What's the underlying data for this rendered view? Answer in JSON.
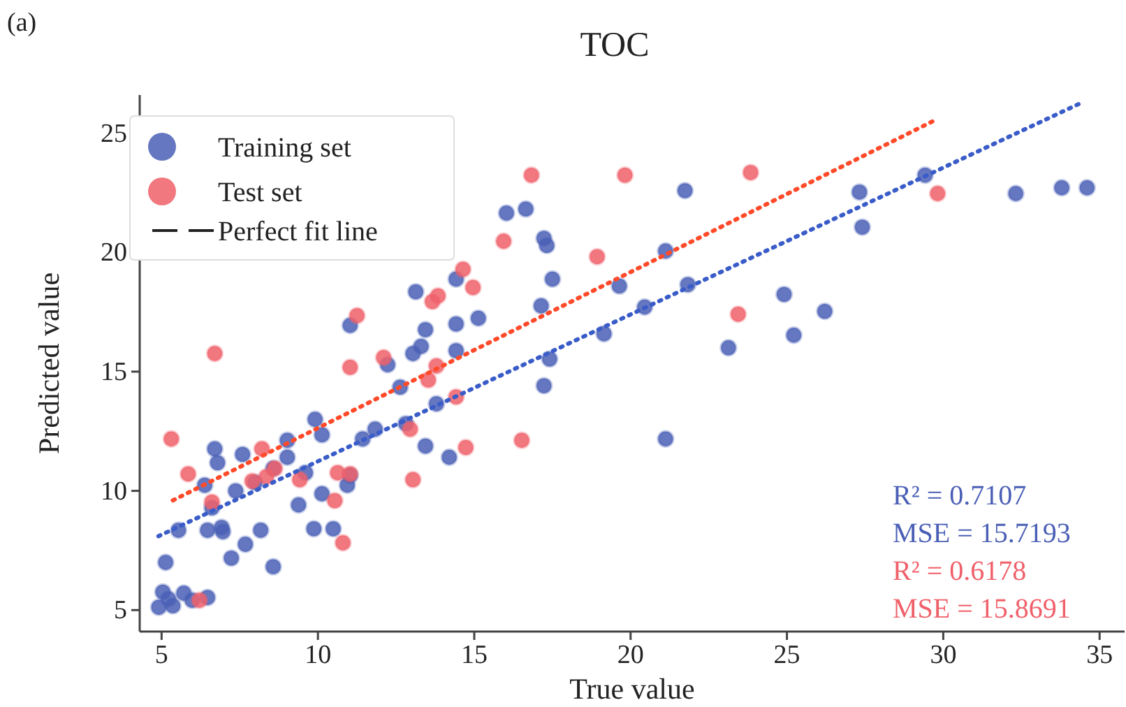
{
  "chart_data": {
    "type": "scatter",
    "title": "TOC",
    "xlabel": "True value",
    "ylabel": "Predicted value",
    "xlim": [
      4.3,
      35.8
    ],
    "ylim": [
      4.1,
      26.6
    ],
    "xticks": [
      5,
      10,
      15,
      20,
      25,
      30,
      35
    ],
    "yticks": [
      5,
      10,
      15,
      20,
      25
    ],
    "grid": false,
    "legend": "top left",
    "annotations": [
      "(a)",
      "Perfect fit line",
      "R² = 0.7107",
      "MSE = 15.7193",
      "R² = 0.6178",
      "MSE = 15.8691"
    ],
    "series": [
      {
        "name": "Training set",
        "marker": "circle",
        "color": "#4a5fb5",
        "x": [
          13.04,
          12.23,
          14.42,
          12.63,
          13.79,
          12.81,
          11.83,
          11.43,
          13.44,
          14.2,
          9.91,
          10.13,
          9.02,
          9.02,
          7.59,
          6.7,
          6.79,
          6.38,
          8.57,
          9.6,
          7.99,
          7.37,
          10.13,
          10.94,
          9.38,
          6.61,
          5.54,
          6.47,
          6.92,
          6.96,
          8.17,
          9.87,
          10.49,
          7.68,
          7.23,
          8.57,
          5.13,
          5.04,
          5.22,
          5.36,
          4.91,
          5.71,
          5.98,
          6.47,
          11.03,
          14.42,
          13.13,
          11.03,
          13.44,
          14.42,
          13.3,
          21.74,
          16.03,
          16.65,
          17.23,
          17.32,
          17.5,
          17.14,
          15.13,
          21.12,
          19.64,
          21.83,
          20.45,
          19.15,
          17.41,
          24.91,
          25.22,
          23.13,
          17.23,
          21.12,
          29.42,
          27.32,
          27.41,
          32.32,
          33.79,
          34.6,
          26.21
        ],
        "values": [
          15.76,
          15.29,
          15.88,
          14.35,
          13.65,
          12.82,
          12.59,
          12.18,
          11.88,
          11.41,
          13.0,
          12.35,
          12.12,
          11.41,
          11.53,
          11.76,
          11.18,
          10.24,
          10.94,
          10.76,
          10.35,
          10.0,
          9.88,
          10.24,
          9.41,
          9.29,
          8.35,
          8.35,
          8.47,
          8.29,
          8.35,
          8.41,
          8.41,
          7.76,
          7.18,
          6.82,
          7.0,
          5.76,
          5.47,
          5.18,
          5.12,
          5.71,
          5.41,
          5.53,
          10.65,
          18.88,
          18.35,
          16.94,
          16.76,
          17.0,
          16.06,
          22.59,
          21.65,
          21.82,
          20.59,
          20.29,
          18.88,
          17.76,
          17.24,
          20.06,
          18.59,
          18.65,
          17.71,
          16.59,
          15.53,
          18.24,
          16.53,
          16.0,
          14.41,
          12.18,
          23.24,
          22.53,
          21.06,
          22.47,
          22.71,
          22.71,
          17.53
        ]
      },
      {
        "name": "Test set",
        "marker": "circle",
        "color": "#f0606a",
        "x": [
          6.7,
          11.03,
          12.1,
          13.79,
          13.53,
          14.42,
          12.95,
          14.73,
          5.31,
          5.85,
          8.21,
          8.35,
          7.9,
          8.62,
          9.42,
          10.63,
          11.03,
          10.54,
          10.8,
          13.04,
          6.61,
          6.21,
          14.64,
          11.25,
          13.66,
          13.84,
          14.96,
          16.83,
          19.82,
          23.84,
          15.94,
          18.93,
          23.44,
          16.52,
          29.82
        ],
        "values": [
          15.76,
          15.18,
          15.59,
          15.24,
          14.65,
          13.94,
          12.59,
          11.82,
          12.18,
          10.71,
          11.76,
          10.59,
          10.41,
          10.94,
          10.47,
          10.76,
          10.71,
          9.59,
          7.82,
          10.47,
          9.53,
          5.41,
          19.29,
          17.35,
          17.94,
          18.18,
          18.53,
          23.24,
          23.24,
          23.35,
          20.47,
          19.82,
          17.41,
          12.12,
          22.47
        ]
      },
      {
        "type": "line",
        "color": "#3a5cc8",
        "line_style": "dotted",
        "x": [
          4.9,
          34.46
        ],
        "values": [
          8.1,
          26.3
        ]
      },
      {
        "type": "line",
        "color": "#ff4a2a",
        "line_style": "dotted",
        "x": [
          5.36,
          29.82
        ],
        "values": [
          9.6,
          25.6
        ]
      }
    ]
  }
}
